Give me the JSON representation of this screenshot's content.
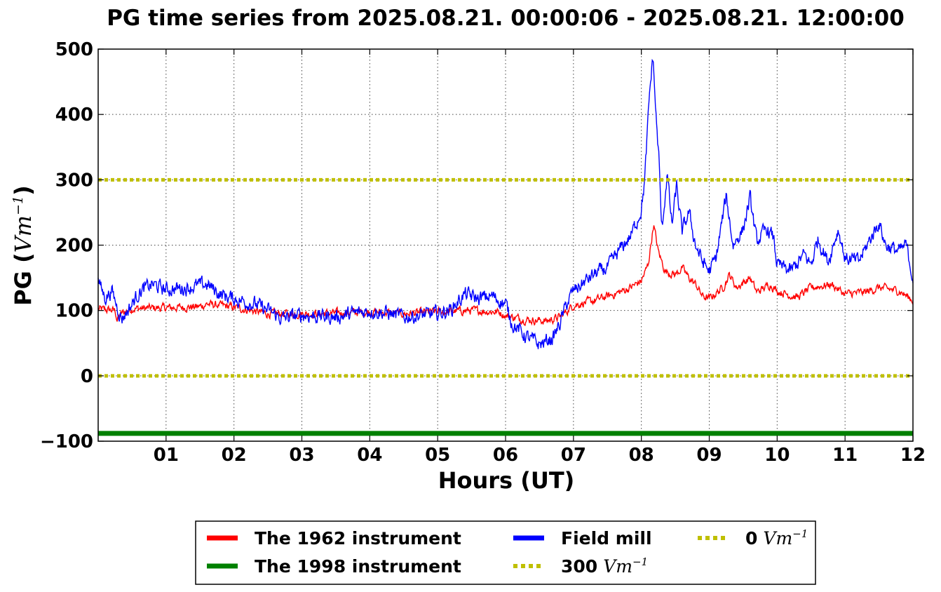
{
  "chart_data": {
    "type": "line",
    "title": "PG time series from 2025.08.21. 00:00:06 - 2025.08.21. 12:00:00",
    "xlabel": "Hours (UT)",
    "ylabel_main": "PG (",
    "ylabel_unit": "Vm",
    "ylabel_exp": "−1",
    "ylabel_close": ")",
    "xlim": [
      0,
      12
    ],
    "ylim": [
      -100,
      500
    ],
    "grid": true,
    "legend_position": "bottom-outside",
    "x_ticks": [
      {
        "value": 1,
        "label": "01"
      },
      {
        "value": 2,
        "label": "02"
      },
      {
        "value": 3,
        "label": "03"
      },
      {
        "value": 4,
        "label": "04"
      },
      {
        "value": 5,
        "label": "05"
      },
      {
        "value": 6,
        "label": "06"
      },
      {
        "value": 7,
        "label": "07"
      },
      {
        "value": 8,
        "label": "08"
      },
      {
        "value": 9,
        "label": "09"
      },
      {
        "value": 10,
        "label": "10"
      },
      {
        "value": 11,
        "label": "11"
      },
      {
        "value": 12,
        "label": "12"
      }
    ],
    "y_ticks": [
      {
        "value": -100,
        "label": "−100"
      },
      {
        "value": 0,
        "label": "0"
      },
      {
        "value": 100,
        "label": "100"
      },
      {
        "value": 200,
        "label": "200"
      },
      {
        "value": 300,
        "label": "300"
      },
      {
        "value": 400,
        "label": "400"
      },
      {
        "value": 500,
        "label": "500"
      }
    ],
    "series": [
      {
        "name": "The 1962 instrument",
        "color": "#ff0000",
        "style": "solid",
        "noise": 5,
        "points": [
          [
            0,
            102
          ],
          [
            0.25,
            100
          ],
          [
            0.28,
            85
          ],
          [
            0.35,
            96
          ],
          [
            0.5,
            103
          ],
          [
            1,
            104
          ],
          [
            1.5,
            106
          ],
          [
            1.6,
            110
          ],
          [
            2,
            105
          ],
          [
            2.5,
            95
          ],
          [
            3,
            95
          ],
          [
            3.5,
            96
          ],
          [
            4,
            98
          ],
          [
            4.5,
            95
          ],
          [
            5,
            98
          ],
          [
            5.5,
            100
          ],
          [
            5.9,
            98
          ],
          [
            6,
            92
          ],
          [
            6.3,
            86
          ],
          [
            6.6,
            84
          ],
          [
            6.8,
            90
          ],
          [
            7,
            108
          ],
          [
            7.3,
            115
          ],
          [
            7.6,
            125
          ],
          [
            7.8,
            133
          ],
          [
            8,
            145
          ],
          [
            8.1,
            170
          ],
          [
            8.18,
            232
          ],
          [
            8.25,
            190
          ],
          [
            8.35,
            160
          ],
          [
            8.5,
            155
          ],
          [
            8.6,
            165
          ],
          [
            8.7,
            150
          ],
          [
            8.8,
            140
          ],
          [
            8.9,
            122
          ],
          [
            9,
            118
          ],
          [
            9.2,
            135
          ],
          [
            9.3,
            155
          ],
          [
            9.4,
            135
          ],
          [
            9.6,
            150
          ],
          [
            9.7,
            128
          ],
          [
            9.9,
            140
          ],
          [
            10,
            130
          ],
          [
            10.3,
            120
          ],
          [
            10.5,
            135
          ],
          [
            10.8,
            140
          ],
          [
            11,
            125
          ],
          [
            11.3,
            128
          ],
          [
            11.5,
            135
          ],
          [
            11.8,
            130
          ],
          [
            12,
            115
          ]
        ]
      },
      {
        "name": "Field mill",
        "color": "#0000ff",
        "style": "solid",
        "noise": 9,
        "points": [
          [
            0,
            145
          ],
          [
            0.1,
            120
          ],
          [
            0.2,
            130
          ],
          [
            0.3,
            100
          ],
          [
            0.35,
            88
          ],
          [
            0.5,
            110
          ],
          [
            0.6,
            128
          ],
          [
            0.8,
            140
          ],
          [
            1,
            132
          ],
          [
            1.3,
            135
          ],
          [
            1.6,
            140
          ],
          [
            1.8,
            125
          ],
          [
            2,
            118
          ],
          [
            2.3,
            110
          ],
          [
            2.5,
            100
          ],
          [
            2.7,
            88
          ],
          [
            3,
            93
          ],
          [
            3.5,
            90
          ],
          [
            3.9,
            98
          ],
          [
            4,
            100
          ],
          [
            4.3,
            95
          ],
          [
            4.5,
            90
          ],
          [
            5,
            95
          ],
          [
            5.2,
            102
          ],
          [
            5.4,
            125
          ],
          [
            5.6,
            118
          ],
          [
            5.8,
            122
          ],
          [
            6,
            110
          ],
          [
            6.1,
            80
          ],
          [
            6.3,
            60
          ],
          [
            6.5,
            48
          ],
          [
            6.7,
            58
          ],
          [
            6.8,
            80
          ],
          [
            6.9,
            110
          ],
          [
            7,
            130
          ],
          [
            7.3,
            155
          ],
          [
            7.5,
            165
          ],
          [
            7.7,
            195
          ],
          [
            7.85,
            215
          ],
          [
            8,
            255
          ],
          [
            8.05,
            300
          ],
          [
            8.12,
            430
          ],
          [
            8.17,
            490
          ],
          [
            8.22,
            390
          ],
          [
            8.26,
            330
          ],
          [
            8.3,
            220
          ],
          [
            8.38,
            310
          ],
          [
            8.45,
            230
          ],
          [
            8.52,
            290
          ],
          [
            8.6,
            220
          ],
          [
            8.7,
            250
          ],
          [
            8.8,
            200
          ],
          [
            8.9,
            175
          ],
          [
            9,
            160
          ],
          [
            9.1,
            180
          ],
          [
            9.25,
            275
          ],
          [
            9.35,
            200
          ],
          [
            9.5,
            225
          ],
          [
            9.6,
            272
          ],
          [
            9.7,
            205
          ],
          [
            9.85,
            225
          ],
          [
            9.95,
            210
          ],
          [
            10,
            170
          ],
          [
            10.2,
            160
          ],
          [
            10.4,
            185
          ],
          [
            10.5,
            170
          ],
          [
            10.6,
            210
          ],
          [
            10.75,
            175
          ],
          [
            10.9,
            225
          ],
          [
            11,
            180
          ],
          [
            11.2,
            175
          ],
          [
            11.4,
            215
          ],
          [
            11.5,
            235
          ],
          [
            11.6,
            200
          ],
          [
            11.8,
            190
          ],
          [
            11.9,
            200
          ],
          [
            12,
            150
          ]
        ]
      },
      {
        "name": "The 1998 instrument",
        "color": "#008000",
        "style": "solid",
        "noise": 0,
        "points": [
          [
            0,
            -88
          ],
          [
            12,
            -88
          ]
        ]
      },
      {
        "name": "300 Vm",
        "legend_label": "300",
        "color": "#bfbf00",
        "style": "dotted",
        "noise": 0,
        "points": [
          [
            0,
            300
          ],
          [
            12,
            300
          ]
        ]
      },
      {
        "name": "0 Vm",
        "legend_label": "0",
        "color": "#bfbf00",
        "style": "dotted",
        "noise": 0,
        "points": [
          [
            0,
            0
          ],
          [
            12,
            0
          ]
        ]
      }
    ],
    "legend": {
      "items": [
        {
          "label": "The 1962 instrument",
          "color": "#ff0000",
          "style": "solid",
          "unit": ""
        },
        {
          "label": "Field mill",
          "color": "#0000ff",
          "style": "solid",
          "unit": ""
        },
        {
          "label": "0",
          "color": "#bfbf00",
          "style": "dotted",
          "unit": "Vm",
          "exp": "−1"
        },
        {
          "label": "The 1998 instrument",
          "color": "#008000",
          "style": "solid",
          "unit": ""
        },
        {
          "label": "300",
          "color": "#bfbf00",
          "style": "dotted",
          "unit": "Vm",
          "exp": "−1"
        }
      ]
    }
  }
}
